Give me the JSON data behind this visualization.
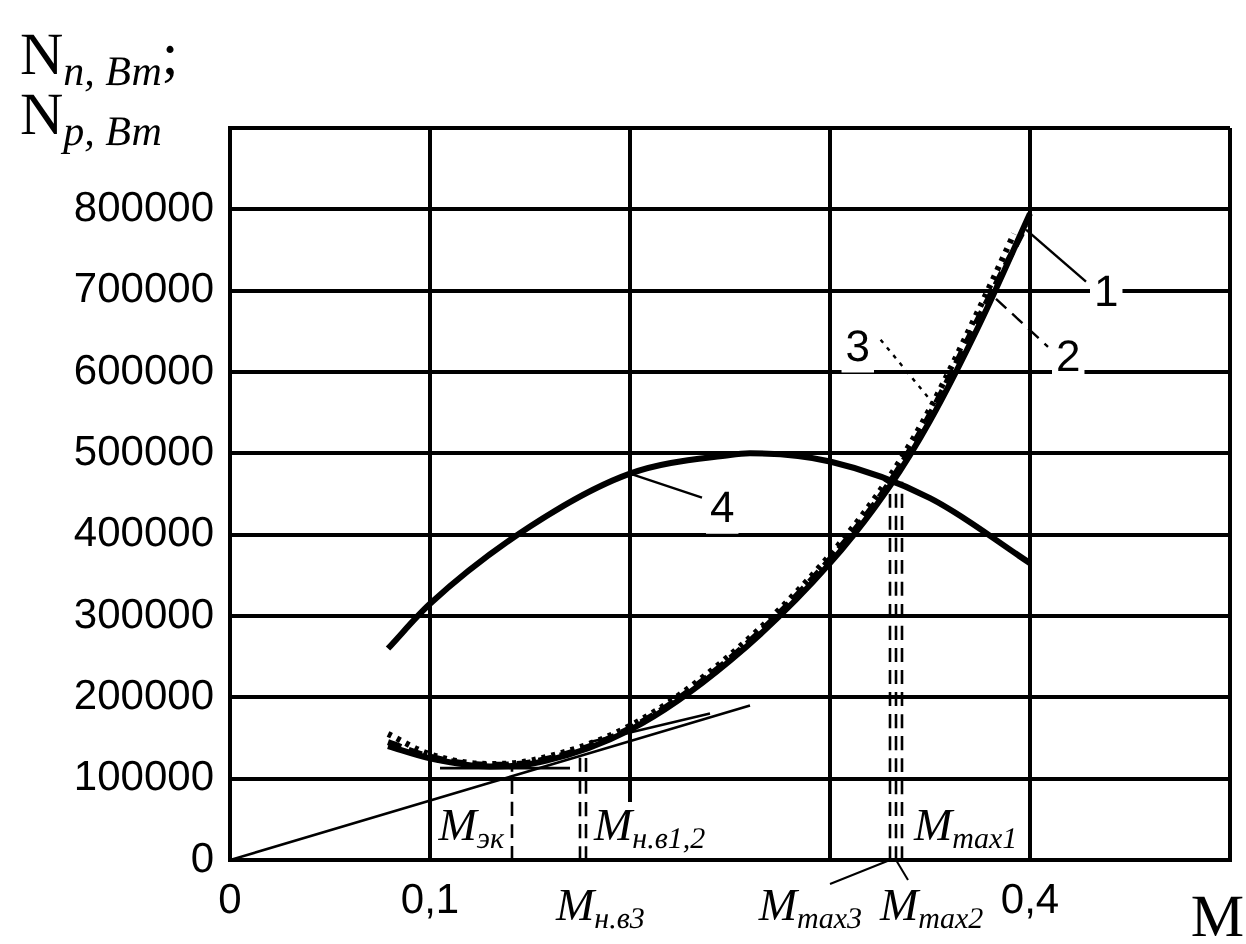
{
  "chart_data": {
    "type": "line",
    "xlabel": "M",
    "ylabel": "N$_{п, Вт}$;\nN$_{р, Вт}$",
    "xlim": [
      0,
      0.5
    ],
    "ylim": [
      0,
      900000
    ],
    "xticks": [
      0,
      {
        "value": 0.1,
        "label": "0,1"
      },
      {
        "value": 0.2,
        "label": null
      },
      {
        "value": 0.3,
        "label": null
      },
      {
        "value": 0.4,
        "label": "0,4"
      },
      {
        "value": 0.5,
        "label": null
      }
    ],
    "yticks": [
      0,
      100000,
      200000,
      300000,
      400000,
      500000,
      600000,
      700000,
      800000,
      {
        "value": 900000,
        "label": null
      }
    ],
    "grid": true,
    "legend": "right",
    "marker": "none",
    "series": [
      {
        "name": "1",
        "color": "#000000",
        "line_style": "solid",
        "x": [
          0.079,
          0.1,
          0.13,
          0.15,
          0.2,
          0.25,
          0.3,
          0.33,
          0.35,
          0.375,
          0.4
        ],
        "values": [
          140000,
          125000,
          115000,
          118000,
          160000,
          245000,
          365000,
          460000,
          540000,
          660000,
          795000
        ]
      },
      {
        "name": "2",
        "color": "#000000",
        "line_style": "dashed",
        "x": [
          0.079,
          0.1,
          0.13,
          0.15,
          0.2,
          0.25,
          0.3,
          0.33,
          0.35,
          0.375,
          0.398
        ],
        "values": [
          145000,
          127000,
          117000,
          120000,
          162000,
          248000,
          370000,
          465000,
          548000,
          670000,
          780000
        ]
      },
      {
        "name": "3",
        "color": "#000000",
        "line_style": "dotted",
        "x": [
          0.079,
          0.1,
          0.13,
          0.15,
          0.2,
          0.25,
          0.3,
          0.33,
          0.35,
          0.375,
          0.392
        ],
        "values": [
          155000,
          130000,
          118000,
          122000,
          165000,
          252000,
          375000,
          472000,
          555000,
          680000,
          770000
        ]
      },
      {
        "name": "4",
        "color": "#000000",
        "line_style": "solid",
        "x": [
          0.079,
          0.1,
          0.15,
          0.2,
          0.25,
          0.26,
          0.3,
          0.35,
          0.4
        ],
        "values": [
          260000,
          315000,
          410000,
          475000,
          498000,
          500000,
          490000,
          445000,
          365000
        ]
      },
      {
        "color": "#000000",
        "line_style": "solid",
        "x": [
          0,
          0.26
        ],
        "values": [
          0,
          190000
        ]
      },
      {
        "color": "#000000",
        "line_style": "solid",
        "x": [
          0.18,
          0.24
        ],
        "values": [
          145000,
          180000
        ]
      },
      {
        "color": "#000000",
        "line_style": "solid",
        "x": [
          0.105,
          0.17
        ],
        "values": [
          113000,
          113000
        ]
      },
      {
        "color": "#000000",
        "line_style": "dashed",
        "x": [
          0.141,
          0.141
        ],
        "values": [
          0,
          115000
        ]
      },
      {
        "color": "#000000",
        "line_style": "dashed",
        "x": [
          0.175,
          0.175
        ],
        "values": [
          0,
          135000
        ]
      },
      {
        "color": "#000000",
        "line_style": "dashed",
        "x": [
          0.178,
          0.178
        ],
        "values": [
          0,
          137000
        ]
      },
      {
        "color": "#000000",
        "line_style": "dashed",
        "x": [
          0.33,
          0.33
        ],
        "values": [
          0,
          455000
        ]
      },
      {
        "color": "#000000",
        "line_style": "dashed",
        "x": [
          0.333,
          0.333
        ],
        "values": [
          0,
          460000
        ]
      },
      {
        "color": "#000000",
        "line_style": "dashed",
        "x": [
          0.336,
          0.336
        ],
        "values": [
          0,
          465000
        ]
      }
    ],
    "annotations": [
      {
        "text": "M$_{эк}$",
        "x": 0.141,
        "y": 0
      },
      {
        "text": "M$_{н.в1,2}$",
        "x": 0.178,
        "y": 0
      },
      {
        "text": "M$_{н.в3}$",
        "x": 0.175,
        "y": 0
      },
      {
        "text": "M$_{max1}$",
        "x": 0.336,
        "y": 0
      },
      {
        "text": "M$_{max3}$",
        "x": 0.33,
        "y": 0
      },
      {
        "text": "M$_{max2}$",
        "x": 0.333,
        "y": 0
      }
    ]
  }
}
